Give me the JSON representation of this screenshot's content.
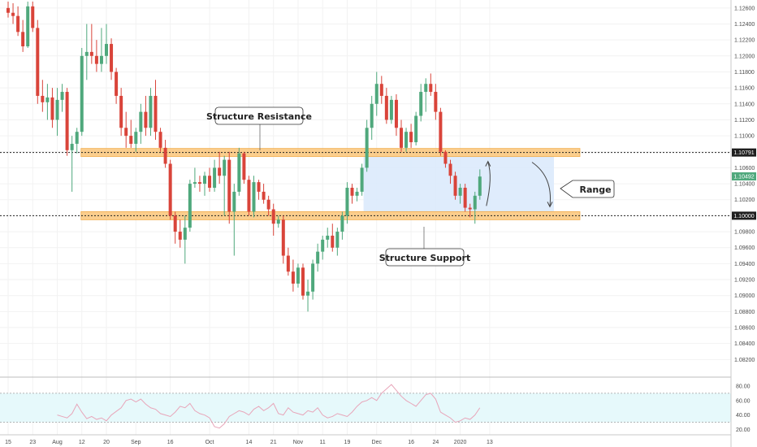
{
  "chart_data": [
    {
      "type": "candlestick",
      "ylim": [
        1.08,
        1.127
      ],
      "y_ticks": [
        "1.12600",
        "1.12400",
        "1.12200",
        "1.12000",
        "1.11800",
        "1.11600",
        "1.11400",
        "1.11200",
        "1.11000",
        "1.10800",
        "1.10600",
        "1.10400",
        "1.10200",
        "1.10000",
        "1.09800",
        "1.09600",
        "1.09400",
        "1.09200",
        "1.09000",
        "1.08800",
        "1.08600",
        "1.08400",
        "1.08200"
      ],
      "x_ticks": [
        "15",
        "23",
        "Aug",
        "12",
        "20",
        "Sep",
        "16",
        "Oct",
        "14",
        "21",
        "Nov",
        "11",
        "19",
        "Dec",
        "16",
        "24",
        "2020",
        "13"
      ],
      "x_tick_index": [
        0,
        5,
        10,
        15,
        20,
        26,
        33,
        41,
        49,
        54,
        59,
        64,
        69,
        75,
        82,
        87,
        92,
        98
      ],
      "candles": [
        [
          1.126,
          1.1268,
          1.1248,
          1.1254
        ],
        [
          1.1254,
          1.1266,
          1.124,
          1.125
        ],
        [
          1.125,
          1.1262,
          1.1225,
          1.123
        ],
        [
          1.123,
          1.1245,
          1.1205,
          1.1212
        ],
        [
          1.1212,
          1.1268,
          1.121,
          1.1262
        ],
        [
          1.1262,
          1.1268,
          1.123,
          1.1235
        ],
        [
          1.1235,
          1.1245,
          1.114,
          1.115
        ],
        [
          1.115,
          1.117,
          1.113,
          1.1142
        ],
        [
          1.1142,
          1.1165,
          1.112,
          1.1148
        ],
        [
          1.1148,
          1.116,
          1.111,
          1.112
        ],
        [
          1.112,
          1.116,
          1.11,
          1.1145
        ],
        [
          1.1145,
          1.1165,
          1.113,
          1.1155
        ],
        [
          1.1155,
          1.116,
          1.1075,
          1.1082
        ],
        [
          1.1082,
          1.11,
          1.103,
          1.109
        ],
        [
          1.109,
          1.111,
          1.1078,
          1.1105
        ],
        [
          1.1105,
          1.121,
          1.11,
          1.12
        ],
        [
          1.12,
          1.124,
          1.117,
          1.1205
        ],
        [
          1.1205,
          1.124,
          1.119,
          1.12
        ],
        [
          1.12,
          1.122,
          1.118,
          1.119
        ],
        [
          1.119,
          1.1235,
          1.118,
          1.12
        ],
        [
          1.12,
          1.124,
          1.119,
          1.1215
        ],
        [
          1.1215,
          1.1222,
          1.117,
          1.118
        ],
        [
          1.118,
          1.1185,
          1.114,
          1.115
        ],
        [
          1.115,
          1.116,
          1.11,
          1.111
        ],
        [
          1.111,
          1.113,
          1.1085,
          1.11
        ],
        [
          1.11,
          1.112,
          1.1085,
          1.109
        ],
        [
          1.109,
          1.111,
          1.108,
          1.1105
        ],
        [
          1.1105,
          1.114,
          1.109,
          1.113
        ],
        [
          1.113,
          1.115,
          1.11,
          1.111
        ],
        [
          1.111,
          1.116,
          1.11,
          1.115
        ],
        [
          1.115,
          1.117,
          1.1095,
          1.1105
        ],
        [
          1.1105,
          1.111,
          1.108,
          1.1085
        ],
        [
          1.1085,
          1.1095,
          1.106,
          1.1065
        ],
        [
          1.1065,
          1.107,
          1.0995,
          1.1
        ],
        [
          1.1,
          1.1005,
          1.0965,
          1.098
        ],
        [
          1.098,
          1.0995,
          1.096,
          1.097
        ],
        [
          1.097,
          1.1,
          1.094,
          1.0985
        ],
        [
          1.0985,
          1.1045,
          1.098,
          1.104
        ],
        [
          1.104,
          1.106,
          1.1035,
          1.1042
        ],
        [
          1.1042,
          1.105,
          1.103,
          1.104
        ],
        [
          1.104,
          1.1055,
          1.1025,
          1.105
        ],
        [
          1.105,
          1.106,
          1.103,
          1.1035
        ],
        [
          1.1035,
          1.107,
          1.103,
          1.106
        ],
        [
          1.106,
          1.108,
          1.104,
          1.105
        ],
        [
          1.105,
          1.1075,
          1.1,
          1.107
        ],
        [
          1.107,
          1.108,
          1.099,
          1.1005
        ],
        [
          1.1005,
          1.104,
          1.095,
          1.103
        ],
        [
          1.103,
          1.1085,
          1.1025,
          1.1078
        ],
        [
          1.1078,
          1.108,
          1.104,
          1.1045
        ],
        [
          1.1045,
          1.105,
          1.1,
          1.1005
        ],
        [
          1.1005,
          1.105,
          1.0998,
          1.1042
        ],
        [
          1.1042,
          1.1045,
          1.102,
          1.103
        ],
        [
          1.103,
          1.104,
          1.1015,
          1.102
        ],
        [
          1.102,
          1.1025,
          1.1,
          1.1008
        ],
        [
          1.1008,
          1.1015,
          1.0975,
          1.099
        ],
        [
          1.099,
          1.1,
          1.0985,
          1.0995
        ],
        [
          1.0995,
          1.1,
          1.094,
          1.095
        ],
        [
          1.095,
          1.096,
          1.0925,
          1.093
        ],
        [
          1.093,
          1.0945,
          1.0905,
          1.0915
        ],
        [
          1.0915,
          1.094,
          1.091,
          1.0935
        ],
        [
          1.0935,
          1.094,
          1.0895,
          1.09
        ],
        [
          1.09,
          1.092,
          1.088,
          1.0905
        ],
        [
          1.0905,
          1.0945,
          1.0895,
          1.094
        ],
        [
          1.094,
          1.0965,
          1.093,
          1.0955
        ],
        [
          1.0955,
          1.0975,
          1.0945,
          1.097
        ],
        [
          1.097,
          1.0985,
          1.096,
          1.0975
        ],
        [
          1.0975,
          1.099,
          1.0955,
          1.096
        ],
        [
          1.096,
          1.0985,
          1.095,
          1.098
        ],
        [
          1.098,
          1.1005,
          1.097,
          1.1
        ],
        [
          1.1,
          1.1042,
          1.099,
          1.1035
        ],
        [
          1.1035,
          1.104,
          1.1015,
          1.1025
        ],
        [
          1.1025,
          1.1035,
          1.1018,
          1.103
        ],
        [
          1.103,
          1.1065,
          1.1025,
          1.106
        ],
        [
          1.106,
          1.112,
          1.1055,
          1.111
        ],
        [
          1.111,
          1.115,
          1.1095,
          1.114
        ],
        [
          1.114,
          1.118,
          1.1125,
          1.1165
        ],
        [
          1.1165,
          1.1175,
          1.114,
          1.115
        ],
        [
          1.115,
          1.116,
          1.1115,
          1.112
        ],
        [
          1.112,
          1.115,
          1.1115,
          1.1145
        ],
        [
          1.1145,
          1.1152,
          1.11,
          1.111
        ],
        [
          1.111,
          1.112,
          1.108,
          1.1085
        ],
        [
          1.1085,
          1.111,
          1.108,
          1.1105
        ],
        [
          1.1105,
          1.1115,
          1.1085,
          1.1092
        ],
        [
          1.1092,
          1.113,
          1.1088,
          1.1125
        ],
        [
          1.1125,
          1.1165,
          1.1118,
          1.1155
        ],
        [
          1.1155,
          1.1172,
          1.113,
          1.1165
        ],
        [
          1.1165,
          1.1178,
          1.115,
          1.1155
        ],
        [
          1.1155,
          1.1165,
          1.112,
          1.113
        ],
        [
          1.113,
          1.1135,
          1.1075,
          1.108
        ],
        [
          1.108,
          1.1082,
          1.106,
          1.1065
        ],
        [
          1.1065,
          1.107,
          1.104,
          1.105
        ],
        [
          1.105,
          1.1055,
          1.102,
          1.1025
        ],
        [
          1.1025,
          1.104,
          1.1015,
          1.1035
        ],
        [
          1.1035,
          1.104,
          1.1005,
          1.101
        ],
        [
          1.101,
          1.1015,
          1.0998,
          1.1008
        ],
        [
          1.1008,
          1.103,
          1.099,
          1.1025
        ],
        [
          1.1025,
          1.1058,
          1.102,
          1.1049
        ]
      ]
    },
    {
      "type": "line",
      "name": "rsi",
      "ylim": [
        15,
        90
      ],
      "y_ticks": [
        "80.00",
        "60.00",
        "40.00",
        "20.00"
      ],
      "band": [
        30,
        70
      ],
      "values": [
        40,
        38,
        36,
        42,
        55,
        44,
        35,
        38,
        34,
        36,
        32,
        40,
        45,
        50,
        60,
        62,
        58,
        62,
        55,
        50,
        48,
        42,
        40,
        38,
        44,
        52,
        50,
        56,
        46,
        42,
        40,
        36,
        24,
        22,
        28,
        38,
        42,
        46,
        44,
        40,
        48,
        52,
        46,
        50,
        56,
        42,
        40,
        50,
        44,
        42,
        40,
        46,
        44,
        50,
        40,
        36,
        38,
        42,
        40,
        38,
        44,
        52,
        58,
        60,
        64,
        60,
        70,
        76,
        82,
        74,
        66,
        60,
        56,
        52,
        60,
        68,
        70,
        62,
        44,
        40,
        36,
        30,
        32,
        36,
        34,
        40,
        50
      ]
    }
  ],
  "levels": {
    "resistance": 1.10791,
    "support": 1.1,
    "resistance_label": "1.10791",
    "support_label": "1.10000",
    "current": 1.10492,
    "current_label": "1.10492"
  },
  "annotations": {
    "resistance_callout": "Structure Resistance",
    "support_callout": "Structure Support",
    "range_callout": "Range"
  },
  "colors": {
    "up": "#4fa87c",
    "down": "#d9443a",
    "zone_fill": "#fbc67a",
    "zone_edge": "#f0a030",
    "range_fill": "#dbeafc",
    "rsi_band": "#e6f9fb",
    "rsi_line": "#e8a5b9",
    "current_tag": "#4fa87c"
  }
}
